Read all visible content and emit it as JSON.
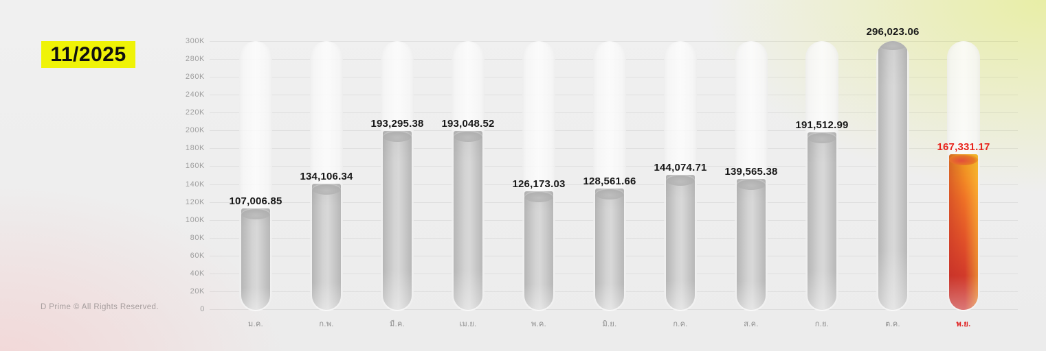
{
  "header": {
    "period_label": "11/2025"
  },
  "footer": {
    "copyright": "D Prime © All Rights Reserved."
  },
  "colors": {
    "background": "#EDEDED",
    "badge_yellow": "#EFF307",
    "badge_text": "#101010",
    "grid_line": "#E2E2E2",
    "axis_text": "#9E9E9E",
    "value_text": "#181818",
    "bar_gray": "#C9C9C9",
    "track_white": "#FBFBFB",
    "highlight_red": "#E8231C",
    "highlight_gradient_top": "#F6A622",
    "highlight_gradient_bottom": "#C92F2E"
  },
  "chart_data": {
    "type": "bar",
    "title": "11/2025",
    "categories": [
      "ม.ค.",
      "ก.พ.",
      "มี.ค.",
      "เม.ย.",
      "พ.ค.",
      "มิ.ย.",
      "ก.ค.",
      "ส.ค.",
      "ก.ย.",
      "ต.ค.",
      "พ.ย."
    ],
    "values": [
      107006.85,
      134106.34,
      193295.38,
      193048.52,
      126173.03,
      128561.66,
      144074.71,
      139565.38,
      191512.99,
      296023.06,
      167331.17
    ],
    "value_labels": [
      "107,006.85",
      "134,106.34",
      "193,295.38",
      "193,048.52",
      "126,173.03",
      "128,561.66",
      "144,074.71",
      "139,565.38",
      "191,512.99",
      "296,023.06",
      "167,331.17"
    ],
    "xlabel": "",
    "ylabel": "",
    "ylim": [
      0,
      300000
    ],
    "ytick_step": 20000,
    "ytick_labels_top_to_bottom": [
      "300K",
      "280K",
      "260K",
      "240K",
      "220K",
      "200K",
      "180K",
      "160K",
      "140K",
      "120K",
      "100K",
      "80K",
      "60K",
      "40K",
      "20K",
      "0"
    ],
    "grid": true,
    "legend": false,
    "highlight_index": 10,
    "bar_style": "rounded-tube"
  }
}
